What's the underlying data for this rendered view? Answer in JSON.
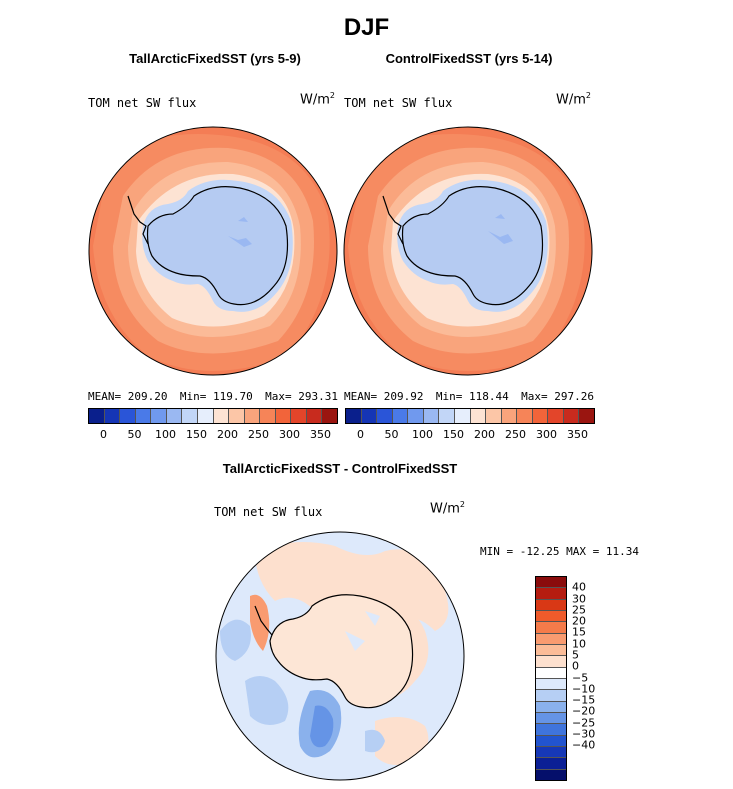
{
  "title": "DJF",
  "colors": {
    "abs_scale": [
      "#0a1f8c",
      "#1535b5",
      "#2a55d8",
      "#4a7ae8",
      "#7099ee",
      "#9ab8f2",
      "#c2d6f7",
      "#e6eefc",
      "#fde3d3",
      "#fcc6a7",
      "#f9a47c",
      "#f68458",
      "#f2643a",
      "#e3452a",
      "#c82b1e",
      "#9a1510"
    ],
    "diff_scale": [
      "#8a0c0c",
      "#b51c10",
      "#d93815",
      "#ef5b2b",
      "#f57b4a",
      "#f99b70",
      "#fbbc98",
      "#fde0ce",
      "#ffffff",
      "#dde9fb",
      "#b6cff4",
      "#8ab1ec",
      "#6594e6",
      "#3f74dc",
      "#2254cf",
      "#1638b7",
      "#0b1f95",
      "#050f6b"
    ],
    "land_abs": "#b5cbf2",
    "land_diff": "#fde6d6"
  },
  "panels": [
    {
      "title": "TallArcticFixedSST (yrs 5-9)",
      "field_label": "TOM net SW flux",
      "units": "W/m",
      "units_exp": "2",
      "stats": {
        "mean_label": "MEAN=",
        "mean": "209.20",
        "min_label": "Min=",
        "min": "119.70",
        "max_label": "Max=",
        "max": "293.31"
      }
    },
    {
      "title": "ControlFixedSST (yrs 5-14)",
      "field_label": "TOM net SW flux",
      "units": "W/m",
      "units_exp": "2",
      "stats": {
        "mean_label": "MEAN=",
        "mean": "209.92",
        "min_label": "Min=",
        "min": "118.44",
        "max_label": "Max=",
        "max": "297.26"
      }
    }
  ],
  "diff_panel": {
    "title": "TallArcticFixedSST - ControlFixedSST",
    "field_label": "TOM net SW flux",
    "units": "W/m",
    "units_exp": "2",
    "min_label": "MIN =",
    "min": "-12.25",
    "max_label": "MAX =",
    "max": "11.34"
  },
  "chart_data": [
    {
      "type": "heatmap",
      "projection": "south polar stereographic",
      "title": "TallArcticFixedSST (yrs 5-9)",
      "variable": "TOM net SW flux",
      "units": "W/m^2",
      "mean": 209.2,
      "min": 119.7,
      "max": 293.31,
      "colorbar_ticks": [
        "0",
        "50",
        "100",
        "150",
        "200",
        "250",
        "300",
        "350"
      ]
    },
    {
      "type": "heatmap",
      "projection": "south polar stereographic",
      "title": "ControlFixedSST (yrs 5-14)",
      "variable": "TOM net SW flux",
      "units": "W/m^2",
      "mean": 209.92,
      "min": 118.44,
      "max": 297.26,
      "colorbar_ticks": [
        "0",
        "50",
        "100",
        "150",
        "200",
        "250",
        "300",
        "350"
      ]
    },
    {
      "type": "heatmap",
      "projection": "south polar stereographic",
      "title": "TallArcticFixedSST - ControlFixedSST",
      "variable": "TOM net SW flux",
      "units": "W/m^2",
      "min": -12.25,
      "max": 11.34,
      "colorbar_ticks": [
        "40",
        "30",
        "25",
        "20",
        "15",
        "10",
        "5",
        "0",
        "−5",
        "−10",
        "−15",
        "−20",
        "−25",
        "−30",
        "−40"
      ]
    }
  ]
}
